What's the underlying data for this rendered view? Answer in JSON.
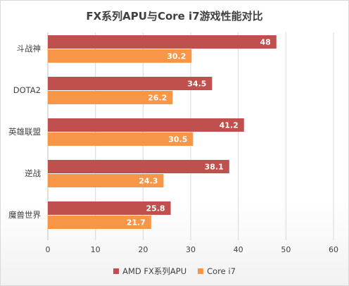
{
  "chart_data": {
    "type": "bar",
    "orientation": "horizontal",
    "title": "FX系列APU与Core i7游戏性能对比",
    "categories": [
      "斗战神",
      "DOTA2",
      "英雄联盟",
      "逆战",
      "魔兽世界"
    ],
    "series": [
      {
        "name": "AMD FX系列APU",
        "color": "#c0504d",
        "values": [
          48,
          34.5,
          41.2,
          38.1,
          25.8
        ]
      },
      {
        "name": "Core i7",
        "color": "#f79646",
        "values": [
          30.2,
          26.2,
          30.5,
          24.3,
          21.7
        ]
      }
    ],
    "xlim": [
      0,
      60
    ],
    "ticks": [
      "0",
      "10",
      "20",
      "30",
      "40",
      "50",
      "60"
    ],
    "grid": true,
    "legend_position": "bottom"
  }
}
